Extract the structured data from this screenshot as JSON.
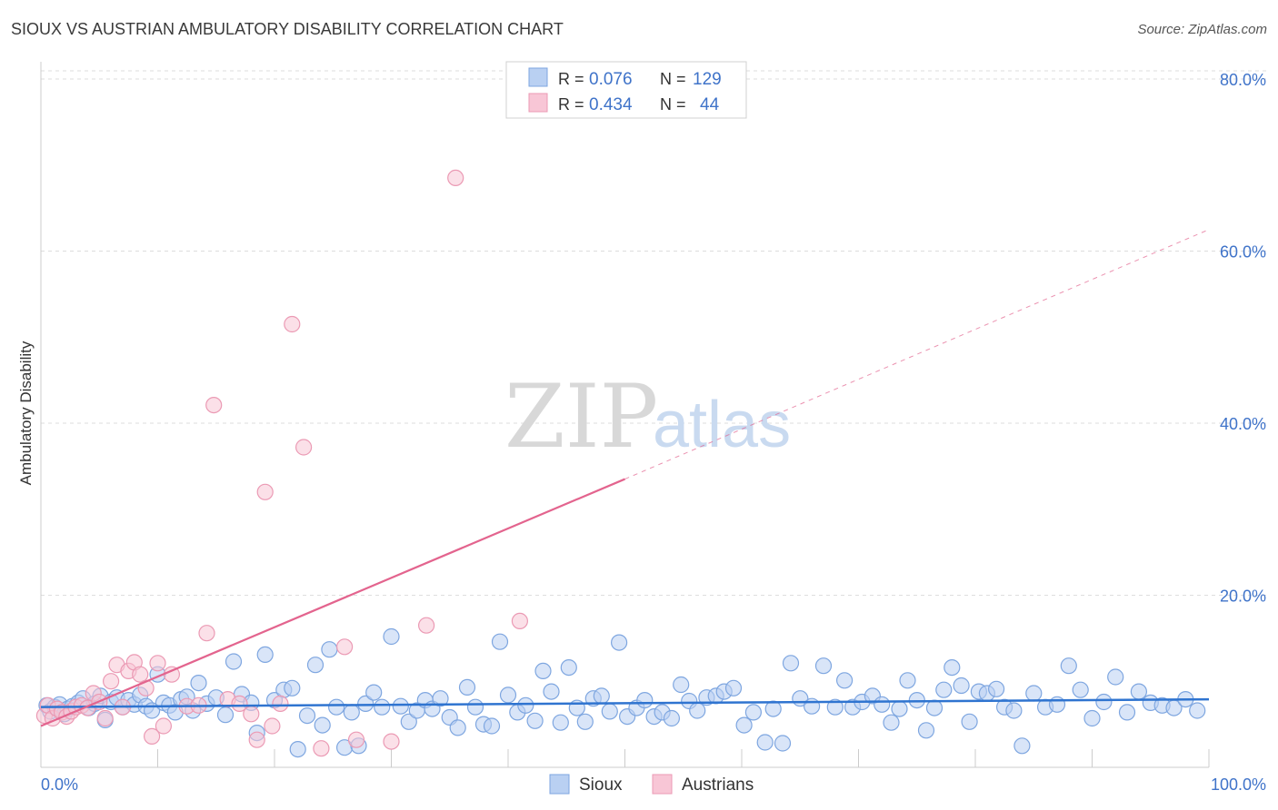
{
  "title": "SIOUX VS AUSTRIAN AMBULATORY DISABILITY CORRELATION CHART",
  "source": "Source: ZipAtlas.com",
  "watermark": {
    "zip": "ZIP",
    "atlas": "atlas"
  },
  "legend_top": {
    "rows": [
      {
        "r_label": "R =",
        "r_value": "0.076",
        "n_label": "N =",
        "n_value": "129"
      },
      {
        "r_label": "R =",
        "r_value": "0.434",
        "n_label": "N =",
        "n_value": "44"
      }
    ]
  },
  "colors": {
    "sioux_fill": "#b9d0f2",
    "sioux_stroke": "#7ea6e0",
    "sioux_line": "#2f74d0",
    "austrians_fill": "#f8c6d6",
    "austrians_stroke": "#eb9ab4",
    "austrians_line": "#e3648e",
    "value_text": "#3f73c9",
    "grid": "#dddddd"
  },
  "chart_data": {
    "type": "scatter",
    "xlabel": "",
    "ylabel": "Ambulatory Disability",
    "xlim": [
      0,
      100
    ],
    "ylim": [
      0,
      82
    ],
    "x_tick_labels": [
      "0.0%",
      "100.0%"
    ],
    "y_ticks": [
      20,
      40,
      60,
      80
    ],
    "y_tick_labels": [
      "20.0%",
      "40.0%",
      "60.0%",
      "80.0%"
    ],
    "grid": true,
    "legend_position": "bottom-center",
    "series": [
      {
        "name": "Sioux",
        "r": 0.076,
        "n": 129,
        "trend": {
          "x0": 0,
          "y0": 7.0,
          "x1": 100,
          "y1": 7.9
        },
        "points": [
          [
            0.5,
            7.2
          ],
          [
            0.8,
            6.5
          ],
          [
            1.2,
            7.0
          ],
          [
            1.6,
            7.3
          ],
          [
            2.0,
            6.2
          ],
          [
            2.3,
            6.8
          ],
          [
            2.7,
            7.1
          ],
          [
            3.2,
            7.5
          ],
          [
            3.6,
            8.0
          ],
          [
            4.1,
            6.9
          ],
          [
            4.6,
            7.4
          ],
          [
            5.1,
            8.3
          ],
          [
            5.5,
            5.5
          ],
          [
            6.0,
            7.6
          ],
          [
            6.5,
            8.1
          ],
          [
            7.0,
            7.0
          ],
          [
            7.5,
            7.8
          ],
          [
            8.0,
            7.3
          ],
          [
            8.5,
            8.4
          ],
          [
            9.0,
            7.1
          ],
          [
            9.5,
            6.6
          ],
          [
            10.0,
            10.8
          ],
          [
            10.5,
            7.5
          ],
          [
            11.0,
            7.2
          ],
          [
            11.5,
            6.4
          ],
          [
            12.0,
            7.9
          ],
          [
            12.5,
            8.2
          ],
          [
            13.0,
            6.6
          ],
          [
            13.5,
            9.8
          ],
          [
            14.2,
            7.4
          ],
          [
            15.0,
            8.1
          ],
          [
            15.8,
            6.1
          ],
          [
            16.5,
            12.3
          ],
          [
            17.2,
            8.5
          ],
          [
            18.0,
            7.5
          ],
          [
            18.5,
            4.0
          ],
          [
            19.2,
            13.1
          ],
          [
            20.0,
            7.8
          ],
          [
            20.8,
            9.0
          ],
          [
            21.5,
            9.2
          ],
          [
            22.0,
            2.1
          ],
          [
            22.8,
            6.0
          ],
          [
            23.5,
            11.9
          ],
          [
            24.1,
            4.9
          ],
          [
            24.7,
            13.7
          ],
          [
            25.3,
            7.0
          ],
          [
            26.0,
            2.3
          ],
          [
            26.6,
            6.4
          ],
          [
            27.2,
            2.5
          ],
          [
            27.8,
            7.4
          ],
          [
            28.5,
            8.7
          ],
          [
            29.2,
            7.0
          ],
          [
            30.0,
            15.2
          ],
          [
            30.8,
            7.1
          ],
          [
            31.5,
            5.3
          ],
          [
            32.2,
            6.6
          ],
          [
            32.9,
            7.8
          ],
          [
            33.5,
            6.8
          ],
          [
            34.2,
            8.0
          ],
          [
            35.0,
            5.8
          ],
          [
            35.7,
            4.6
          ],
          [
            36.5,
            9.3
          ],
          [
            37.2,
            7.0
          ],
          [
            37.9,
            5.0
          ],
          [
            38.6,
            4.8
          ],
          [
            39.3,
            14.6
          ],
          [
            40.0,
            8.4
          ],
          [
            40.8,
            6.4
          ],
          [
            41.5,
            7.2
          ],
          [
            42.3,
            5.4
          ],
          [
            43.0,
            11.2
          ],
          [
            43.7,
            8.8
          ],
          [
            44.5,
            5.2
          ],
          [
            45.2,
            11.6
          ],
          [
            45.9,
            6.9
          ],
          [
            46.6,
            5.3
          ],
          [
            47.3,
            8.0
          ],
          [
            48.0,
            8.3
          ],
          [
            48.7,
            6.5
          ],
          [
            49.5,
            14.5
          ],
          [
            50.2,
            5.9
          ],
          [
            51.0,
            6.9
          ],
          [
            51.7,
            7.8
          ],
          [
            52.5,
            5.9
          ],
          [
            53.2,
            6.4
          ],
          [
            54.0,
            5.7
          ],
          [
            54.8,
            9.6
          ],
          [
            55.5,
            7.7
          ],
          [
            56.2,
            6.6
          ],
          [
            57.0,
            8.1
          ],
          [
            57.8,
            8.3
          ],
          [
            58.5,
            8.8
          ],
          [
            59.3,
            9.2
          ],
          [
            60.2,
            4.9
          ],
          [
            61.0,
            6.4
          ],
          [
            62.0,
            2.9
          ],
          [
            62.7,
            6.8
          ],
          [
            63.5,
            2.8
          ],
          [
            64.2,
            12.1
          ],
          [
            65.0,
            8.0
          ],
          [
            66.0,
            7.1
          ],
          [
            67.0,
            11.8
          ],
          [
            68.0,
            7.0
          ],
          [
            68.8,
            10.1
          ],
          [
            69.5,
            7.0
          ],
          [
            70.3,
            7.6
          ],
          [
            71.2,
            8.3
          ],
          [
            72.0,
            7.3
          ],
          [
            72.8,
            5.2
          ],
          [
            73.5,
            6.8
          ],
          [
            74.2,
            10.1
          ],
          [
            75.0,
            7.8
          ],
          [
            75.8,
            4.3
          ],
          [
            76.5,
            6.9
          ],
          [
            77.3,
            9.0
          ],
          [
            78.0,
            11.6
          ],
          [
            78.8,
            9.5
          ],
          [
            79.5,
            5.3
          ],
          [
            80.3,
            8.8
          ],
          [
            81.0,
            8.6
          ],
          [
            81.8,
            9.1
          ],
          [
            82.5,
            7.0
          ],
          [
            83.3,
            6.6
          ],
          [
            84.0,
            2.5
          ],
          [
            85.0,
            8.6
          ],
          [
            86.0,
            7.0
          ],
          [
            87.0,
            7.3
          ],
          [
            88.0,
            11.8
          ],
          [
            89.0,
            9.0
          ],
          [
            90.0,
            5.7
          ],
          [
            91.0,
            7.6
          ],
          [
            92.0,
            10.5
          ],
          [
            93.0,
            6.4
          ],
          [
            94.0,
            8.8
          ],
          [
            95.0,
            7.5
          ],
          [
            96.0,
            7.2
          ],
          [
            97.0,
            6.9
          ],
          [
            98.0,
            7.9
          ],
          [
            99.0,
            6.6
          ]
        ]
      },
      {
        "name": "Austrians",
        "r": 0.434,
        "n": 44,
        "trend": {
          "x0": 0,
          "y0": 4.8,
          "x1": 50,
          "y1": 33.5,
          "x_ext": 100,
          "y_ext": 62.5
        },
        "points": [
          [
            0.3,
            6.0
          ],
          [
            0.6,
            7.2
          ],
          [
            1.0,
            5.7
          ],
          [
            1.4,
            6.8
          ],
          [
            1.8,
            6.4
          ],
          [
            2.2,
            5.9
          ],
          [
            2.6,
            6.5
          ],
          [
            3.0,
            7.0
          ],
          [
            3.5,
            7.2
          ],
          [
            4.0,
            6.9
          ],
          [
            4.5,
            8.6
          ],
          [
            5.0,
            7.6
          ],
          [
            5.5,
            5.7
          ],
          [
            6.0,
            10.0
          ],
          [
            6.5,
            11.9
          ],
          [
            7.0,
            7.0
          ],
          [
            7.5,
            11.2
          ],
          [
            8.0,
            12.2
          ],
          [
            8.5,
            10.8
          ],
          [
            9.0,
            9.2
          ],
          [
            9.5,
            3.6
          ],
          [
            10.0,
            12.1
          ],
          [
            10.5,
            4.8
          ],
          [
            11.2,
            10.8
          ],
          [
            12.5,
            7.1
          ],
          [
            13.5,
            7.2
          ],
          [
            14.2,
            15.6
          ],
          [
            14.8,
            42.1
          ],
          [
            16.0,
            7.9
          ],
          [
            17.0,
            7.4
          ],
          [
            18.0,
            6.2
          ],
          [
            18.5,
            3.2
          ],
          [
            19.2,
            32.0
          ],
          [
            19.8,
            4.8
          ],
          [
            20.5,
            7.4
          ],
          [
            21.5,
            51.5
          ],
          [
            22.5,
            37.2
          ],
          [
            24.0,
            2.2
          ],
          [
            26.0,
            14.0
          ],
          [
            27.0,
            3.2
          ],
          [
            30.0,
            3.0
          ],
          [
            33.0,
            16.5
          ],
          [
            35.5,
            68.5
          ],
          [
            41.0,
            17.0
          ]
        ]
      }
    ]
  },
  "legend_bottom": {
    "items": [
      "Sioux",
      "Austrians"
    ]
  }
}
